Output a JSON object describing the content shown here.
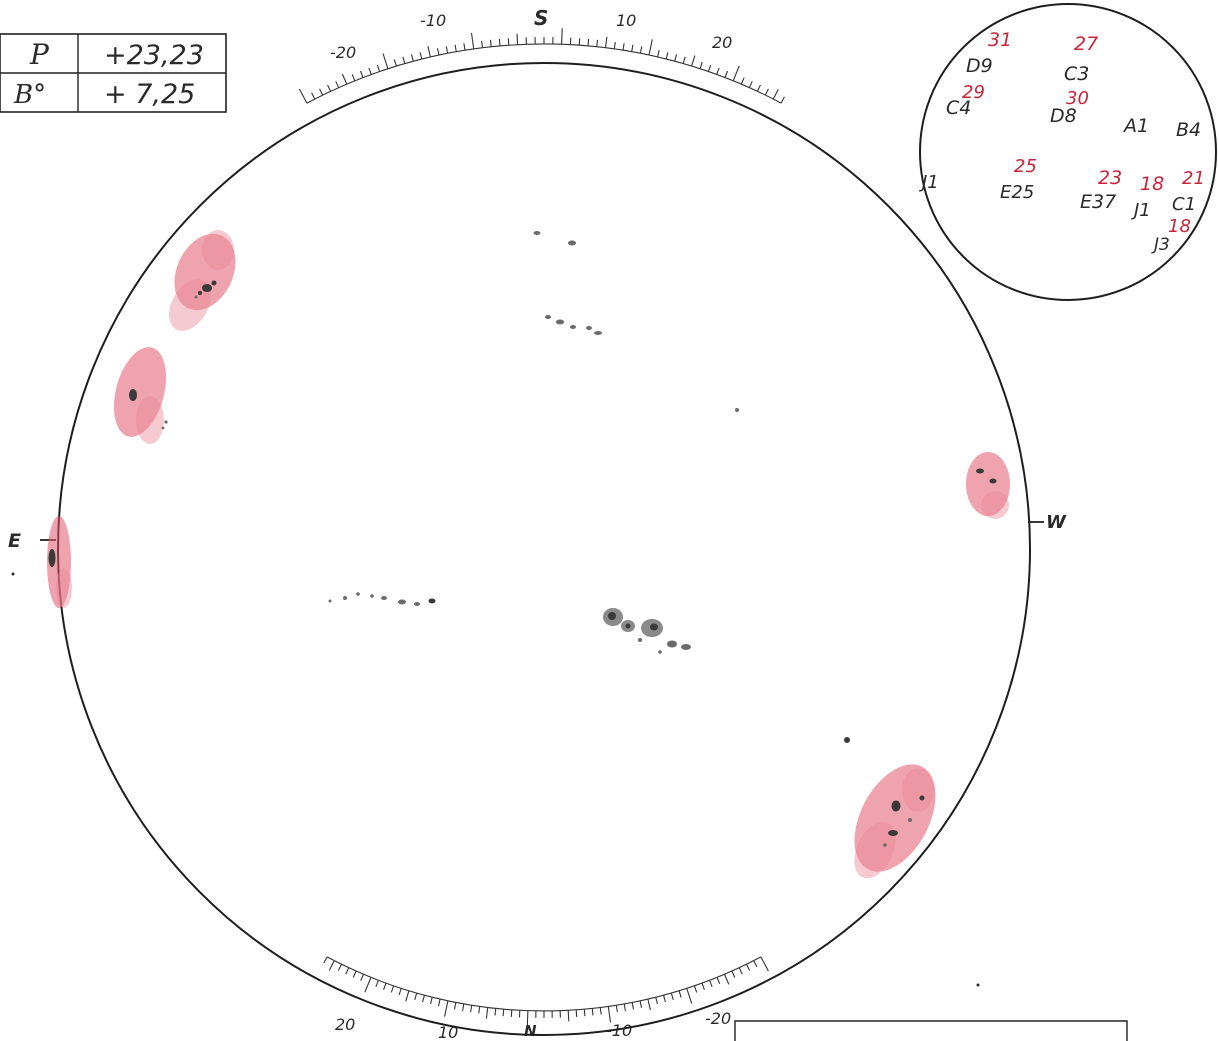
{
  "params_table": {
    "rows": [
      {
        "label": "P",
        "value": "+23,23"
      },
      {
        "label": "B°",
        "value": "+ 7,25"
      }
    ]
  },
  "compass": {
    "south": "S",
    "north": "N",
    "east": "E",
    "west": "W"
  },
  "top_scale": {
    "labels": [
      "-20",
      "-10",
      "10",
      "20"
    ]
  },
  "bottom_scale": {
    "labels": [
      "20",
      "10",
      "-10",
      "-20"
    ]
  },
  "legend": {
    "groups": [
      {
        "day": "31",
        "code": "D9"
      },
      {
        "day": "27",
        "code": "C3"
      },
      {
        "day": "29",
        "code": "C4"
      },
      {
        "day": "30",
        "code": "D8"
      },
      {
        "day": "",
        "code": "A1"
      },
      {
        "day": "",
        "code": "B4"
      },
      {
        "day": "",
        "code": "J1"
      },
      {
        "day": "25",
        "code": "E25"
      },
      {
        "day": "23",
        "code": "E37"
      },
      {
        "day": "18",
        "code": "J1"
      },
      {
        "day": "21",
        "code": "C1"
      },
      {
        "day": "18",
        "code": "J3"
      }
    ]
  },
  "colors": {
    "ink": "#2a2a2a",
    "facula": "#e0576b",
    "legend_numbers": "#c8253a"
  }
}
